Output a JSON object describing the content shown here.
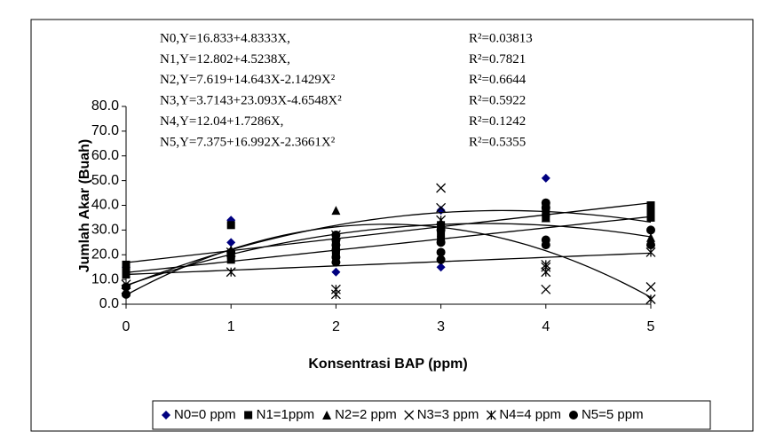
{
  "chart_data": {
    "type": "scatter",
    "ylabel": "Jumlah Akar (Buah)",
    "xlabel": "Konsentrasi BAP (ppm)",
    "xlim": [
      0,
      5
    ],
    "xticks": [
      0,
      1,
      2,
      3,
      4,
      5
    ],
    "ylim": [
      0,
      80
    ],
    "yticks": [
      {
        "value": 0,
        "label": "0.0"
      },
      {
        "value": 10,
        "label": "10.0"
      },
      {
        "value": 20,
        "label": "20.0"
      },
      {
        "value": 30,
        "label": "30.0"
      },
      {
        "value": 40,
        "label": "40.0"
      },
      {
        "value": 50,
        "label": "50.0"
      },
      {
        "value": 60,
        "label": "60.0"
      },
      {
        "value": 70,
        "label": "70.0"
      },
      {
        "value": 80,
        "label": "80.0"
      }
    ],
    "legend": "bottom",
    "annotations": [
      {
        "equation": "N0,Y=16.833+4.8333X,",
        "r2": "R²=0.03813"
      },
      {
        "equation": "N1,Y=12.802+4.5238X,",
        "r2": "R²=0.7821"
      },
      {
        "equation": "N2,Y=7.619+14.643X-2.1429X²",
        "r2": "R²=0.6644"
      },
      {
        "equation": "N3,Y=3.7143+23.093X-4.6548X²",
        "r2": "R²=0.5922"
      },
      {
        "equation": "N4,Y=12.04+1.7286X,",
        "r2": "R²=0.1242"
      },
      {
        "equation": "N5,Y=7.375+16.992X-2.3661X²",
        "r2": "R²=0.5355"
      }
    ],
    "series": [
      {
        "name": "N0=0 ppm",
        "color": "#000080",
        "marker": "diamond",
        "trendline": [
          16.833,
          4.8333
        ],
        "x": [
          0,
          1,
          1,
          2,
          3,
          3,
          4,
          5
        ],
        "values": [
          15,
          34,
          25,
          13,
          15,
          38,
          51,
          30
        ]
      },
      {
        "name": "N1=1ppm",
        "color": "#000000",
        "marker": "square",
        "trendline": [
          12.802,
          4.5238
        ],
        "x": [
          0,
          0,
          0,
          1,
          1,
          1,
          2,
          2,
          2,
          3,
          3,
          3,
          4,
          4,
          4,
          5,
          5,
          5
        ],
        "values": [
          16,
          14,
          12,
          32,
          20,
          18,
          25,
          22,
          20,
          32,
          29,
          26,
          40,
          37,
          35,
          40,
          38,
          35
        ]
      },
      {
        "name": "N2=2 ppm",
        "color": "#000000",
        "marker": "triangle",
        "trendline": [
          7.619,
          14.643,
          -2.1429
        ],
        "x": [
          0,
          1,
          2,
          3,
          4,
          5
        ],
        "values": [
          5,
          22,
          38,
          33,
          35,
          27
        ]
      },
      {
        "name": "N3=3 ppm",
        "color": "#000000",
        "marker": "cross",
        "trendline": [
          3.7143,
          23.093,
          -4.6548
        ],
        "x": [
          0,
          1,
          2,
          3,
          3,
          4,
          5,
          5
        ],
        "values": [
          8,
          21,
          28,
          47,
          39,
          6,
          7,
          2
        ]
      },
      {
        "name": "N4=4 ppm",
        "color": "#000000",
        "marker": "star",
        "trendline": [
          12.04,
          1.7286
        ],
        "x": [
          0,
          1,
          2,
          2,
          3,
          4,
          4,
          4,
          5,
          5
        ],
        "values": [
          6,
          13,
          6,
          4,
          34,
          16,
          13,
          15,
          21,
          2
        ]
      },
      {
        "name": "N5=5 ppm",
        "color": "#000000",
        "marker": "circle",
        "trendline": [
          7.375,
          16.992,
          -2.3661
        ],
        "x": [
          0,
          0,
          1,
          2,
          2,
          2,
          2,
          2,
          2,
          3,
          3,
          3,
          3,
          4,
          4,
          4,
          4,
          5,
          5
        ],
        "values": [
          4,
          7,
          21,
          28,
          26,
          24,
          22,
          19,
          17,
          30,
          25,
          21,
          18,
          41,
          39,
          26,
          24,
          24,
          30
        ]
      }
    ]
  }
}
